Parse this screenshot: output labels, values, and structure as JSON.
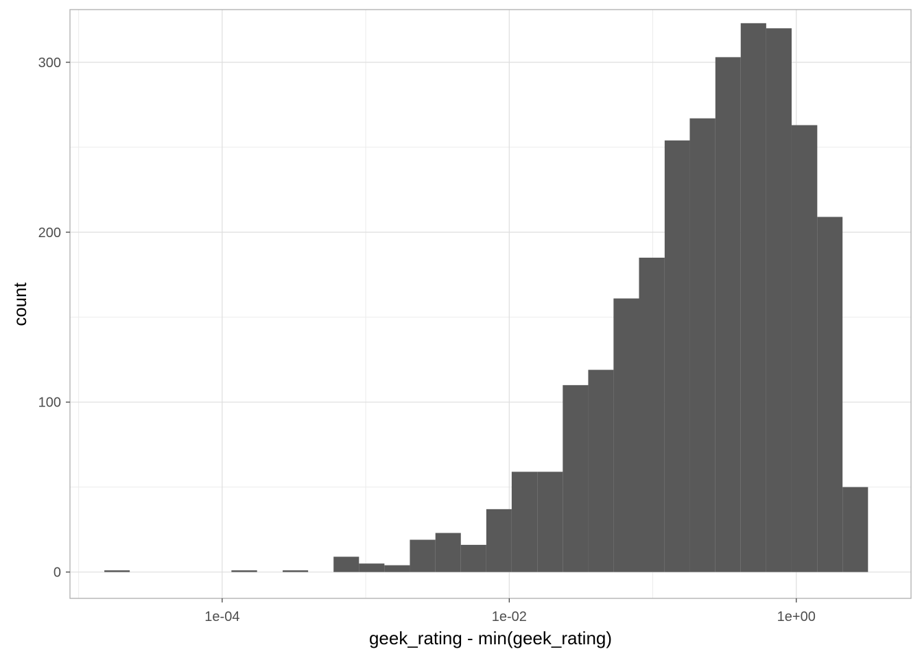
{
  "chart_data": {
    "type": "bar",
    "title": "",
    "xlabel": "geek_rating - min(geek_rating)",
    "ylabel": "count",
    "x_scale": "log10",
    "xlim": [
      8.7e-06,
      6.3
    ],
    "ylim": [
      -15.5,
      331
    ],
    "grid": true,
    "legend": "none",
    "bar_color": "#595959",
    "x_ticks": [
      {
        "value": 0.0001,
        "label": "1e-04"
      },
      {
        "value": 0.01,
        "label": "1e-02"
      },
      {
        "value": 1,
        "label": "1e+00"
      }
    ],
    "x_minor_ticks": [
      1e-05,
      0.001,
      0.1
    ],
    "y_ticks": [
      {
        "value": 0,
        "label": "0"
      },
      {
        "value": 100,
        "label": "100"
      },
      {
        "value": 200,
        "label": "200"
      },
      {
        "value": 300,
        "label": "300"
      }
    ],
    "y_minor_ticks": [
      50,
      150,
      250
    ],
    "bins": [
      {
        "x0": 1.51e-05,
        "x1": 2.27e-05,
        "count": 1
      },
      {
        "x0": 2.27e-05,
        "x1": 3.42e-05,
        "count": 0
      },
      {
        "x0": 3.42e-05,
        "x1": 5.14e-05,
        "count": 0
      },
      {
        "x0": 5.14e-05,
        "x1": 7.74e-05,
        "count": 0
      },
      {
        "x0": 7.74e-05,
        "x1": 0.000116,
        "count": 0
      },
      {
        "x0": 0.000116,
        "x1": 0.000175,
        "count": 1
      },
      {
        "x0": 0.000175,
        "x1": 0.000264,
        "count": 0
      },
      {
        "x0": 0.000264,
        "x1": 0.000397,
        "count": 1
      },
      {
        "x0": 0.000397,
        "x1": 0.000597,
        "count": 0
      },
      {
        "x0": 0.000597,
        "x1": 0.000898,
        "count": 9
      },
      {
        "x0": 0.000898,
        "x1": 0.00135,
        "count": 5
      },
      {
        "x0": 0.00135,
        "x1": 0.00203,
        "count": 4
      },
      {
        "x0": 0.00203,
        "x1": 0.00306,
        "count": 19
      },
      {
        "x0": 0.00306,
        "x1": 0.0046,
        "count": 23
      },
      {
        "x0": 0.0046,
        "x1": 0.00692,
        "count": 16
      },
      {
        "x0": 0.00692,
        "x1": 0.0104,
        "count": 37
      },
      {
        "x0": 0.0104,
        "x1": 0.0157,
        "count": 59
      },
      {
        "x0": 0.0157,
        "x1": 0.0236,
        "count": 59
      },
      {
        "x0": 0.0236,
        "x1": 0.0355,
        "count": 110
      },
      {
        "x0": 0.0355,
        "x1": 0.0533,
        "count": 119
      },
      {
        "x0": 0.0533,
        "x1": 0.0802,
        "count": 161
      },
      {
        "x0": 0.0802,
        "x1": 0.121,
        "count": 185
      },
      {
        "x0": 0.121,
        "x1": 0.181,
        "count": 254
      },
      {
        "x0": 0.181,
        "x1": 0.273,
        "count": 267
      },
      {
        "x0": 0.273,
        "x1": 0.41,
        "count": 303
      },
      {
        "x0": 0.41,
        "x1": 0.617,
        "count": 323
      },
      {
        "x0": 0.617,
        "x1": 0.928,
        "count": 320
      },
      {
        "x0": 0.928,
        "x1": 1.4,
        "count": 263
      },
      {
        "x0": 1.4,
        "x1": 2.1,
        "count": 209
      },
      {
        "x0": 2.1,
        "x1": 3.16,
        "count": 50
      }
    ]
  }
}
